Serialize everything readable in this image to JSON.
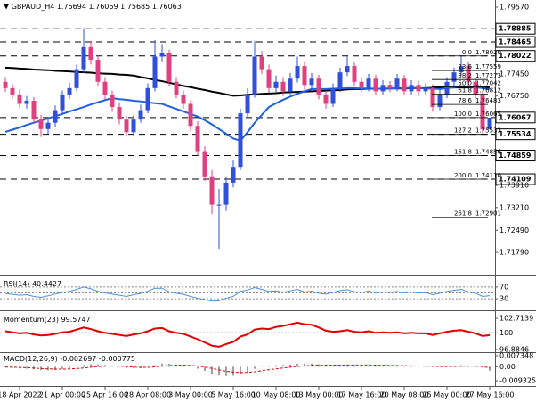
{
  "chart_data": [
    {
      "type": "candlestick",
      "title": "GBPAUD_H4",
      "up_color": "#2f4fdc",
      "down_color": "#e0407f",
      "categories": [
        null,
        null,
        "18 Apr 2022",
        null,
        null,
        null,
        null,
        null,
        "21 Apr 00:00",
        null,
        null,
        null,
        null,
        null,
        "25 Apr 16:00",
        null,
        null,
        null,
        null,
        null,
        "28 Apr 08:00",
        null,
        null,
        null,
        null,
        null,
        "3 May 00:00",
        null,
        null,
        null,
        null,
        null,
        "5 May 16:00",
        null,
        null,
        null,
        null,
        null,
        "10 May 08:00",
        null,
        null,
        null,
        null,
        null,
        "13 May 00:00",
        null,
        null,
        null,
        null,
        null,
        "17 May 16:00",
        null,
        null,
        null,
        null,
        null,
        "20 May 08:00",
        null,
        null,
        null,
        null,
        null,
        "25 May 00:00",
        null,
        null,
        null,
        null,
        null,
        "27 May 16:00"
      ],
      "open": [
        1.772,
        1.77,
        1.768,
        1.765,
        1.766,
        1.76,
        1.757,
        1.759,
        1.763,
        1.768,
        1.77,
        1.776,
        1.783,
        1.779,
        1.772,
        1.768,
        1.764,
        1.76,
        1.756,
        1.76,
        1.763,
        1.77,
        1.78,
        1.781,
        1.772,
        1.768,
        1.765,
        1.758,
        1.75,
        1.742,
        1.733,
        1.733,
        1.74,
        1.745,
        1.762,
        1.768,
        1.78,
        1.776,
        1.77,
        1.772,
        1.769,
        1.773,
        1.777,
        1.771,
        1.773,
        1.768,
        1.765,
        1.77,
        1.775,
        1.777,
        1.772,
        1.77,
        1.773,
        1.769,
        1.771,
        1.77,
        1.773,
        1.769,
        1.771,
        1.769,
        1.77,
        1.764,
        1.768,
        1.772,
        1.775,
        1.777,
        1.772,
        1.768,
        1.75694
      ],
      "high": [
        1.7735,
        1.7712,
        1.7695,
        1.7675,
        1.7672,
        1.7615,
        1.7602,
        1.7645,
        1.7692,
        1.7718,
        1.7775,
        1.789,
        1.785,
        1.7802,
        1.7735,
        1.7692,
        1.7655,
        1.7612,
        1.7615,
        1.7648,
        1.7715,
        1.7852,
        1.784,
        1.7822,
        1.7735,
        1.7692,
        1.7662,
        1.7595,
        1.7515,
        1.744,
        1.738,
        1.742,
        1.747,
        1.7635,
        1.77,
        1.785,
        1.7818,
        1.7775,
        1.774,
        1.7735,
        1.7748,
        1.78,
        1.7785,
        1.7748,
        1.7742,
        1.7692,
        1.7715,
        1.7765,
        1.78,
        1.7782,
        1.7735,
        1.7745,
        1.7742,
        1.7725,
        1.7722,
        1.7745,
        1.7742,
        1.7725,
        1.7722,
        1.7715,
        1.7712,
        1.7695,
        1.7735,
        1.7765,
        1.7802,
        1.7785,
        1.7732,
        1.7692,
        1.76069
      ],
      "low": [
        1.7688,
        1.7668,
        1.7638,
        1.7635,
        1.7588,
        1.7545,
        1.7555,
        1.7578,
        1.762,
        1.7665,
        1.769,
        1.7748,
        1.7775,
        1.7708,
        1.7665,
        1.7625,
        1.7585,
        1.7548,
        1.755,
        1.759,
        1.762,
        1.769,
        1.7785,
        1.7705,
        1.7668,
        1.7635,
        1.7565,
        1.7485,
        1.7405,
        1.73,
        1.719,
        1.731,
        1.7385,
        1.744,
        1.7605,
        1.767,
        1.7745,
        1.7685,
        1.7688,
        1.7675,
        1.768,
        1.7718,
        1.7695,
        1.7698,
        1.7665,
        1.7635,
        1.764,
        1.7688,
        1.7738,
        1.7705,
        1.7688,
        1.769,
        1.7678,
        1.768,
        1.7688,
        1.769,
        1.7678,
        1.768,
        1.7675,
        1.768,
        1.7625,
        1.763,
        1.7668,
        1.7708,
        1.774,
        1.7708,
        1.7668,
        1.7555,
        1.75685
      ],
      "close": [
        1.77,
        1.768,
        1.765,
        1.766,
        1.76,
        1.757,
        1.759,
        1.763,
        1.768,
        1.77,
        1.776,
        1.783,
        1.779,
        1.772,
        1.768,
        1.764,
        1.76,
        1.756,
        1.76,
        1.763,
        1.77,
        1.78,
        1.781,
        1.772,
        1.768,
        1.765,
        1.758,
        1.75,
        1.742,
        1.733,
        1.733,
        1.74,
        1.745,
        1.762,
        1.768,
        1.78,
        1.776,
        1.77,
        1.772,
        1.769,
        1.773,
        1.777,
        1.771,
        1.773,
        1.768,
        1.765,
        1.77,
        1.775,
        1.777,
        1.772,
        1.77,
        1.773,
        1.769,
        1.771,
        1.77,
        1.773,
        1.769,
        1.771,
        1.769,
        1.77,
        1.764,
        1.768,
        1.772,
        1.775,
        1.777,
        1.772,
        1.768,
        1.7569,
        1.76063
      ],
      "moving_averages": [
        {
          "color": "#000000",
          "values": [
            1.7765,
            1.7764,
            1.7762,
            1.7761,
            1.7759,
            1.7758,
            1.7757,
            1.7755,
            1.7754,
            1.7753,
            1.7751,
            1.775,
            1.7749,
            1.7747,
            1.7746,
            1.7745,
            1.7743,
            1.7742,
            1.774,
            1.7735,
            1.7731,
            1.7726,
            1.7722,
            1.7717,
            1.7712,
            1.7707,
            1.7703,
            1.7698,
            1.7694,
            1.7689,
            1.7685,
            1.768,
            1.7676,
            1.7677,
            1.7679,
            1.768,
            1.7682,
            1.7683,
            1.7684,
            1.7686,
            1.7687,
            1.7688,
            1.7689,
            1.769,
            1.7691,
            1.7692,
            1.7693,
            1.7694,
            1.7696,
            1.7697,
            1.7697,
            1.7698,
            1.7698,
            1.7698,
            1.7699,
            1.7699,
            1.7699,
            1.77,
            1.77,
            1.77,
            1.7701,
            1.7701,
            1.7701,
            1.7702,
            1.7702,
            1.7702,
            1.7702,
            1.7703,
            1.7703
          ]
        },
        {
          "color": "#1f5fe0",
          "values": [
            1.7561,
            1.7568,
            1.7575,
            1.7583,
            1.759,
            1.7597,
            1.7604,
            1.7611,
            1.7618,
            1.7626,
            1.7633,
            1.764,
            1.7648,
            1.7655,
            1.7662,
            1.7668,
            1.7665,
            1.7663,
            1.766,
            1.7658,
            1.7655,
            1.7652,
            1.765,
            1.7642,
            1.7634,
            1.7626,
            1.7618,
            1.761,
            1.7598,
            1.7585,
            1.757,
            1.7555,
            1.754,
            1.7533,
            1.756,
            1.759,
            1.7615,
            1.764,
            1.7652,
            1.7663,
            1.7673,
            1.7682,
            1.769,
            1.7697,
            1.7697,
            1.7697,
            1.7698,
            1.7699,
            1.77,
            1.77,
            1.7699,
            1.7699,
            1.7698,
            1.7698,
            1.7699,
            1.77,
            1.77,
            1.7701,
            1.77,
            1.7699,
            1.7698,
            1.7697,
            1.77,
            1.7703,
            1.7706,
            1.7705,
            1.7703,
            1.77,
            1.7697
          ]
        }
      ],
      "ylim": [
        1.71168,
        1.79796
      ],
      "yticks": [
        {
          "value": 1.7957,
          "label": "1.79570"
        },
        {
          "value": 1.7745,
          "label": "1.77450"
        },
        {
          "value": 1.7675,
          "label": "1.76750"
        },
        {
          "value": 1.7391,
          "label": "1.73910"
        },
        {
          "value": 1.7321,
          "label": "1.73210"
        },
        {
          "value": 1.7249,
          "label": "1.72490"
        },
        {
          "value": 1.7179,
          "label": "1.71790"
        }
      ],
      "levels": [
        1.78885,
        1.78465,
        1.78022,
        1.76067,
        1.75534,
        1.74859,
        1.74109
      ],
      "fibonacci": [
        {
          "ratio": "0.0",
          "price": {
            "value": 1.7802,
            "label": "1.78020"
          }
        },
        {
          "ratio": "23.6",
          "price": 1.77559
        },
        {
          "ratio": "38.2",
          "price": 1.77273
        },
        {
          "ratio": "50.0",
          "price": 1.77042
        },
        {
          "ratio": "61.8",
          "price": 1.76812
        },
        {
          "ratio": "78.6",
          "price": 1.76483
        },
        {
          "ratio": "100.0",
          "price": 1.76065
        },
        {
          "ratio": "127.2",
          "price": 1.75533
        },
        {
          "ratio": "161.8",
          "price": 1.74856
        },
        {
          "ratio": "200.0",
          "price": {
            "value": 1.7411,
            "label": "1.74110"
          }
        },
        {
          "ratio": "261.8",
          "price": 1.72901
        }
      ]
    },
    {
      "type": "line",
      "title": "RSI(14)",
      "color": "#4a90d9",
      "values": [
        48,
        45,
        42,
        44,
        38,
        35,
        40,
        46,
        52,
        55,
        62,
        70,
        64,
        55,
        50,
        46,
        42,
        38,
        44,
        48,
        56,
        66,
        66,
        54,
        49,
        45,
        38,
        32,
        27,
        22,
        23,
        32,
        38,
        55,
        60,
        68,
        62,
        55,
        57,
        52,
        57,
        62,
        53,
        56,
        49,
        46,
        52,
        58,
        61,
        54,
        52,
        56,
        50,
        53,
        51,
        55,
        50,
        53,
        50,
        51,
        44,
        49,
        55,
        59,
        62,
        54,
        49,
        38,
        40.4427
      ],
      "ylim": [
        0,
        100
      ],
      "yticks": [
        70,
        30
      ],
      "levels": [
        70,
        50,
        30
      ]
    },
    {
      "type": "line",
      "title": "Momentum(23)",
      "color": "#e00000",
      "values": [
        100.3,
        100.1,
        99.9,
        100.0,
        99.7,
        99.5,
        99.6,
        99.8,
        100.1,
        100.2,
        100.6,
        101.0,
        100.7,
        100.3,
        100.0,
        99.8,
        99.6,
        99.4,
        99.7,
        99.9,
        100.3,
        100.8,
        100.9,
        100.3,
        100.0,
        99.8,
        99.3,
        98.8,
        98.2,
        97.6,
        97.4,
        97.9,
        98.3,
        99.3,
        99.7,
        100.6,
        100.8,
        100.7,
        101.1,
        101.3,
        101.6,
        101.9,
        101.6,
        101.5,
        101.0,
        100.4,
        100.2,
        100.3,
        100.5,
        100.2,
        100.1,
        100.3,
        100.0,
        100.1,
        100.0,
        100.1,
        99.9,
        100.0,
        99.9,
        99.9,
        99.6,
        99.9,
        100.2,
        100.4,
        100.5,
        100.2,
        99.9,
        99.4,
        99.5747
      ],
      "ylim": [
        96.385,
        103.547
      ],
      "yticks": [
        102.7139,
        100,
        96.8846
      ],
      "levels": [
        100
      ]
    },
    {
      "type": "macd",
      "title": "MACD(12,26,9)",
      "color": "#a0a0a0",
      "signal_color": "#e00000",
      "values": [
        -0.0005,
        -0.0008,
        -0.0012,
        -0.0013,
        -0.0018,
        -0.0023,
        -0.0024,
        -0.0021,
        -0.0015,
        -0.0009,
        0,
        0.0012,
        0.0017,
        0.0016,
        0.0012,
        0.0006,
        -0.0001,
        -0.0008,
        -0.001,
        -0.0009,
        -0.0002,
        0.0011,
        0.0021,
        0.002,
        0.0015,
        0.0009,
        0,
        -0.0013,
        -0.0028,
        -0.0046,
        -0.0059,
        -0.0062,
        -0.006,
        -0.0047,
        -0.0033,
        -0.0014,
        -0.0002,
        0.0004,
        0.001,
        0.0012,
        0.0016,
        0.0021,
        0.0021,
        0.0021,
        0.0017,
        0.0011,
        0.0009,
        0.0011,
        0.0014,
        0.0013,
        0.0011,
        0.0011,
        0.0008,
        0.0007,
        0.0006,
        0.0007,
        0.0005,
        0.0005,
        0.0003,
        0.0003,
        -0.0002,
        -0.0003,
        0,
        0.0005,
        0.001,
        0.0009,
        0.0005,
        -0.0006,
        -0.002697
      ],
      "signal": [
        -0.0002,
        -0.0003,
        -0.0005,
        -0.0006,
        -0.0009,
        -0.0012,
        -0.0014,
        -0.0016,
        -0.0016,
        -0.0015,
        -0.0012,
        -0.0008,
        -0.0003,
        0.0001,
        0.0004,
        0.0005,
        0.0004,
        0.0001,
        -0.0002,
        -0.0004,
        -0.0004,
        -0.0001,
        0.0004,
        0.0008,
        0.001,
        0.0011,
        0.0009,
        0.0005,
        -0.0002,
        -0.0011,
        -0.0021,
        -0.003,
        -0.0036,
        -0.0039,
        -0.0038,
        -0.0034,
        -0.0027,
        -0.002,
        -0.0014,
        -0.0008,
        -0.0003,
        0.0002,
        0.0006,
        0.001,
        0.0012,
        0.0012,
        0.0011,
        0.0011,
        0.0012,
        0.0012,
        0.0012,
        0.0012,
        0.0011,
        0.001,
        0.0009,
        0.0008,
        0.0007,
        0.0006,
        0.0005,
        0.0004,
        0.0003,
        0.0002,
        0.0001,
        0.0002,
        0.0003,
        0.0004,
        0.0004,
        0.0002,
        -0.000775
      ],
      "ylim": [
        -0.012302,
        0.009134
      ],
      "yticks": [
        0.007348,
        {
          "value": 0,
          "label": "0.00"
        },
        -0.009325
      ]
    }
  ]
}
